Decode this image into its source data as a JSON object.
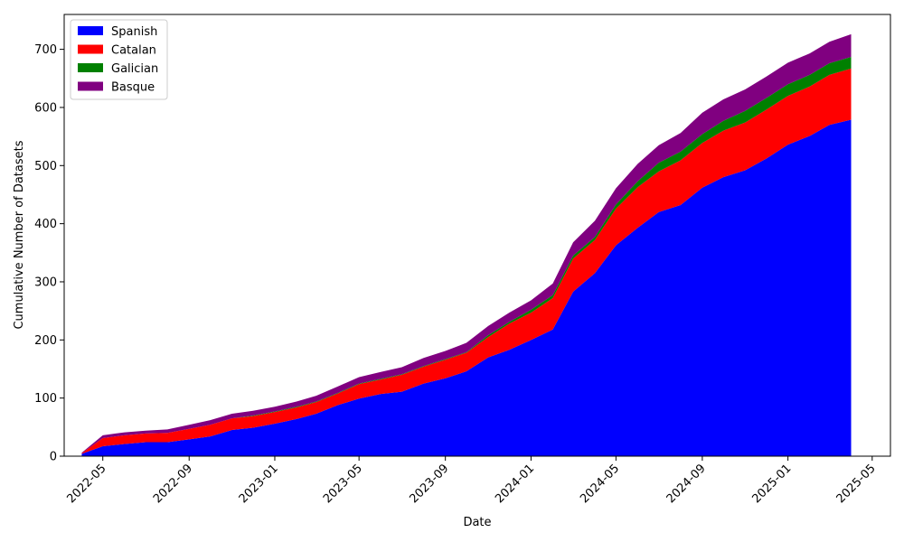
{
  "chart_data": {
    "type": "area",
    "stacked": true,
    "title": "",
    "xlabel": "Date",
    "ylabel": "Cumulative Number of Datasets",
    "x_ticks": [
      "2022-05",
      "2022-09",
      "2023-01",
      "2023-05",
      "2023-09",
      "2024-01",
      "2024-05",
      "2024-09",
      "2025-01",
      "2025-05"
    ],
    "y_ticks": [
      0,
      100,
      200,
      300,
      400,
      500,
      600,
      700
    ],
    "xlim": [
      "2022-03-07",
      "2025-05-27"
    ],
    "ylim": [
      0,
      760
    ],
    "legend_position": "upper-left",
    "x": [
      "2022-04-01",
      "2022-05-01",
      "2022-06-01",
      "2022-07-01",
      "2022-08-01",
      "2022-09-01",
      "2022-10-01",
      "2022-11-01",
      "2022-12-01",
      "2023-01-01",
      "2023-02-01",
      "2023-03-01",
      "2023-04-01",
      "2023-05-01",
      "2023-06-01",
      "2023-07-01",
      "2023-08-01",
      "2023-09-01",
      "2023-10-01",
      "2023-11-01",
      "2023-12-01",
      "2024-01-01",
      "2024-02-01",
      "2024-03-01",
      "2024-04-01",
      "2024-05-01",
      "2024-06-01",
      "2024-07-01",
      "2024-08-01",
      "2024-09-01",
      "2024-10-01",
      "2024-11-01",
      "2024-12-01",
      "2025-01-01",
      "2025-02-01",
      "2025-03-01",
      "2025-04-01"
    ],
    "series": [
      {
        "name": "Spanish",
        "color": "#0000ff",
        "values": [
          4,
          17,
          21,
          24,
          24,
          29,
          34,
          45,
          49,
          56,
          64,
          73,
          88,
          99,
          107,
          111,
          125,
          134,
          146,
          170,
          183,
          200,
          218,
          283,
          315,
          363,
          393,
          420,
          432,
          462,
          480,
          492,
          512,
          536,
          551,
          570,
          579
        ]
      },
      {
        "name": "Catalan",
        "color": "#ff0000",
        "values": [
          1,
          14,
          15,
          15,
          16,
          18,
          20,
          20,
          20,
          20,
          20,
          20,
          20,
          25,
          25,
          29,
          29,
          32,
          32,
          35,
          45,
          47,
          54,
          57,
          57,
          63,
          70,
          70,
          77,
          77,
          80,
          82,
          84,
          84,
          85,
          86,
          88
        ]
      },
      {
        "name": "Galician",
        "color": "#008000",
        "values": [
          0,
          0,
          0,
          0,
          0,
          0,
          0,
          0,
          1,
          1,
          1,
          1,
          1,
          1,
          1,
          1,
          1,
          1,
          1,
          3,
          3,
          5,
          5,
          5,
          5,
          7,
          10,
          15,
          15,
          15,
          17,
          20,
          20,
          20,
          20,
          20,
          20
        ]
      },
      {
        "name": "Basque",
        "color": "#800080",
        "values": [
          1,
          5,
          5,
          5,
          6,
          7,
          8,
          8,
          8,
          8,
          9,
          10,
          11,
          11,
          12,
          12,
          14,
          14,
          16,
          16,
          16,
          16,
          20,
          23,
          28,
          28,
          30,
          30,
          32,
          37,
          37,
          37,
          37,
          37,
          37,
          37,
          39
        ]
      }
    ]
  }
}
